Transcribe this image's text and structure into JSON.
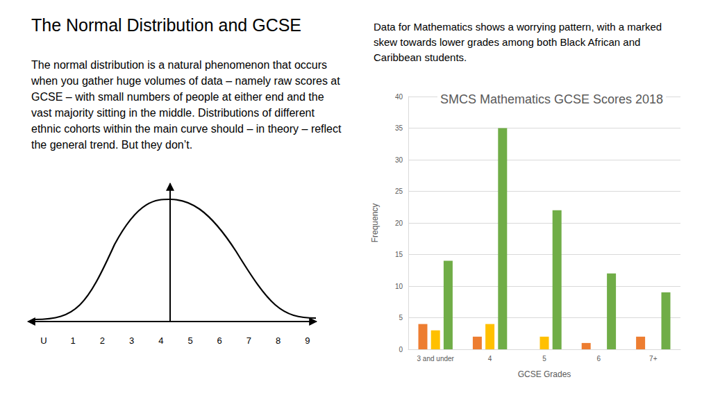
{
  "title": "The Normal Distribution and GCSE",
  "intro_text": "The normal distribution is a natural phenomenon that occurs when you gather huge volumes of data – namely raw scores at GCSE – with small numbers of people at either end and the vast majority sitting in the middle. Distributions of different ethnic cohorts within the main curve should – in theory – reflect the general trend. But they don’t.",
  "commentary": "Data for Mathematics shows a worrying pattern, with a marked skew towards lower grades among both Black African and Caribbean students.",
  "diagram": {
    "axis_labels": [
      "U",
      "1",
      "2",
      "3",
      "4",
      "5",
      "6",
      "7",
      "8",
      "9"
    ]
  },
  "chart_data": {
    "type": "bar",
    "title": "SMCS Mathematics GCSE Scores 2018",
    "x_label": "GCSE Grades",
    "y_label": "Frequency",
    "categories": [
      "3 and under",
      "4",
      "5",
      "6",
      "7+"
    ],
    "series": [
      {
        "color": "#ed7d31",
        "values": [
          4,
          2,
          0,
          1,
          2
        ]
      },
      {
        "color": "#ffc000",
        "values": [
          3,
          4,
          2,
          0,
          0
        ]
      },
      {
        "color": "#70ad47",
        "values": [
          14,
          35,
          22,
          12,
          9
        ]
      }
    ],
    "ylim": [
      0,
      40
    ],
    "yticks": [
      0,
      5,
      10,
      15,
      20,
      25,
      30,
      35,
      40
    ],
    "grid": true
  }
}
